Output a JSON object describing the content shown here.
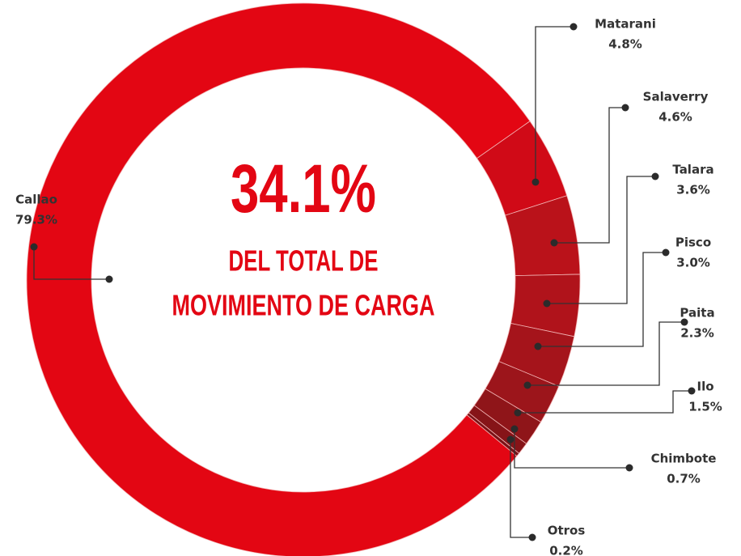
{
  "chart_data": {
    "type": "pie",
    "donut": true,
    "categories": [
      "Callao",
      "Matarani",
      "Salaverry",
      "Talara",
      "Pisco",
      "Paita",
      "Ilo",
      "Chimbote",
      "Otros"
    ],
    "values": [
      79.3,
      4.8,
      4.6,
      3.6,
      3.0,
      2.3,
      1.5,
      0.7,
      0.2
    ],
    "value_labels": [
      "79.3%",
      "4.8%",
      "4.6%",
      "3.6%",
      "3.0%",
      "2.3%",
      "1.5%",
      "0.7%",
      "0.2%"
    ],
    "colors": [
      "#e30613",
      "#d00a17",
      "#ba121a",
      "#b0131b",
      "#a5141b",
      "#9c151b",
      "#8f1519",
      "#861418",
      "#7a1216"
    ],
    "annotations": [
      "34.1%",
      "DEL TOTAL DE",
      "MOVIMIENTO DE CARGA"
    ]
  }
}
